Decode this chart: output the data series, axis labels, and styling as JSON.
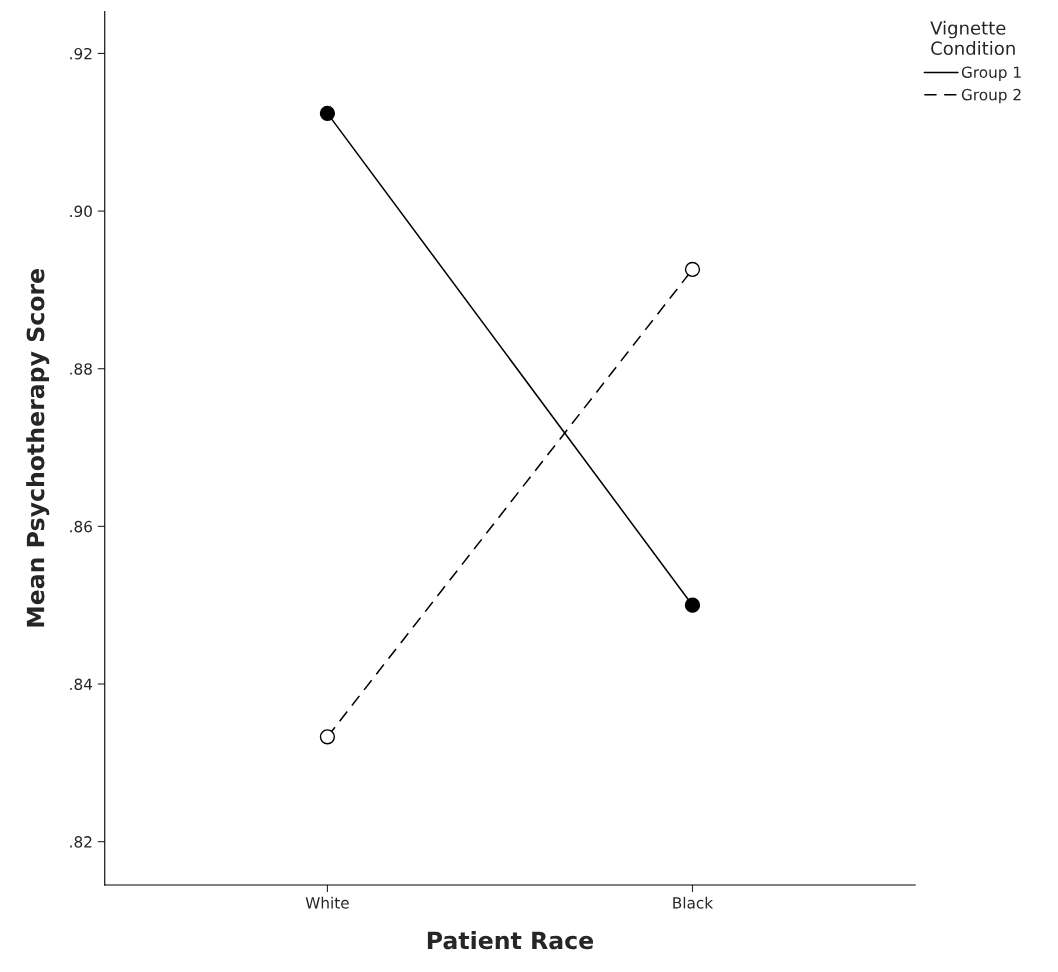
{
  "chart_data": {
    "type": "line",
    "xlabel": "Patient Race",
    "ylabel": "Mean Psychotherapy Score",
    "legend_title": "Vignette\nCondition",
    "categories": [
      "White",
      "Black"
    ],
    "series": [
      {
        "name": "Group 1",
        "color": "#000000",
        "values": [
          0.9124,
          0.85
        ],
        "line_style": "solid",
        "marker": "circle"
      },
      {
        "name": "Group 2",
        "color": "#000000",
        "values": [
          0.8333,
          0.8926
        ],
        "line_style": "dashed",
        "marker": "circle"
      }
    ],
    "ylim": [
      0.8145,
      0.9253
    ],
    "yticks": [
      {
        "value": 0.82,
        "label": ".82"
      },
      {
        "value": 0.84,
        "label": ".84"
      },
      {
        "value": 0.86,
        "label": ".86"
      },
      {
        "value": 0.88,
        "label": ".88"
      },
      {
        "value": 0.9,
        "label": ".90"
      },
      {
        "value": 0.92,
        "label": ".92"
      }
    ],
    "grid": false,
    "legend": "top right"
  }
}
